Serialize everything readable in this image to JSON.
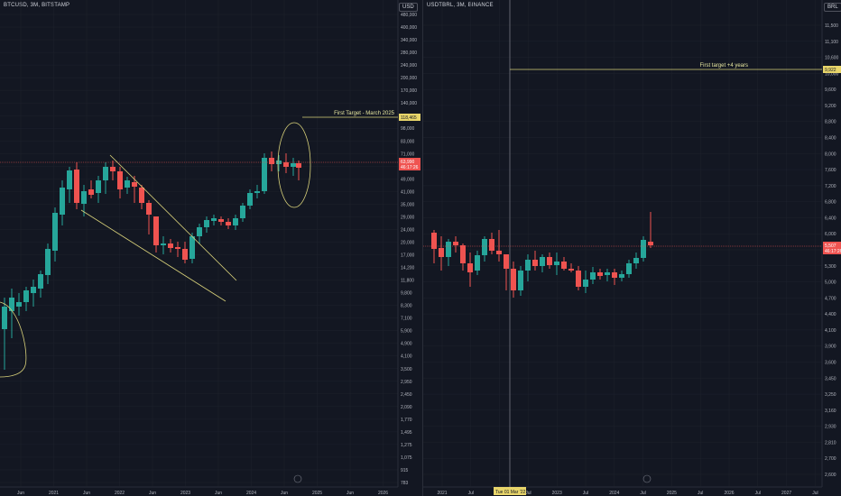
{
  "left": {
    "symbol": "BTCUSD, 3M, BITSTAMP",
    "currency": "USD",
    "y_ticks": [
      "480,000",
      "400,000",
      "340,000",
      "280,000",
      "240,000",
      "200,000",
      "170,000",
      "140,000",
      "118,000",
      "98,000",
      "83,000",
      "71,000",
      "59,000",
      "49,000",
      "41,000",
      "35,000",
      "29,000",
      "24,000",
      "20,000",
      "17,000",
      "14,200",
      "11,800",
      "9,800",
      "8,300",
      "7,100",
      "5,900",
      "4,900",
      "4,100",
      "3,500",
      "2,950",
      "2,450",
      "2,090",
      "1,770",
      "1,495",
      "1,275",
      "1,075",
      "915",
      "783"
    ],
    "x_ticks": [
      "Jun",
      "2021",
      "Jun",
      "2022",
      "Jun",
      "2023",
      "Jun",
      "2024",
      "Jun",
      "2025",
      "Jun",
      "2026"
    ],
    "target_label": "First Target  - March 2025",
    "target_value": "118,465",
    "price_label": "63,990",
    "price_sub": "46:17:26"
  },
  "right": {
    "symbol": "USDTBRL, 3M, BINANCE",
    "currency": "BRL",
    "y_ticks": [
      "11,500",
      "11,100",
      "10,600",
      "10,000",
      "9,600",
      "9,200",
      "8,800",
      "8,400",
      "8,000",
      "7,600",
      "7,200",
      "6,800",
      "6,400",
      "6,000",
      "5,600",
      "5,300",
      "5,000",
      "4,700",
      "4,400",
      "4,100",
      "3,900",
      "3,600",
      "3,450",
      "3,250",
      "3,160",
      "2,930",
      "2,810",
      "2,700",
      "2,600"
    ],
    "x_ticks": [
      "2021",
      "Jul",
      "2022",
      "Jul",
      "2023",
      "Jul",
      "2024",
      "Jul",
      "2025",
      "Jul",
      "2026",
      "Jul",
      "2027",
      "Jul"
    ],
    "date_label": "Tue 01 Mar '22",
    "target_label": "First target +4 years",
    "target_value": "9,922",
    "price_label": "5,507",
    "price_sub": "46:17:26"
  },
  "colors": {
    "up": "#26a69a",
    "down": "#ef5350",
    "bg": "#131722",
    "grid": "#1e222d",
    "drawing": "#d9d27a"
  }
}
